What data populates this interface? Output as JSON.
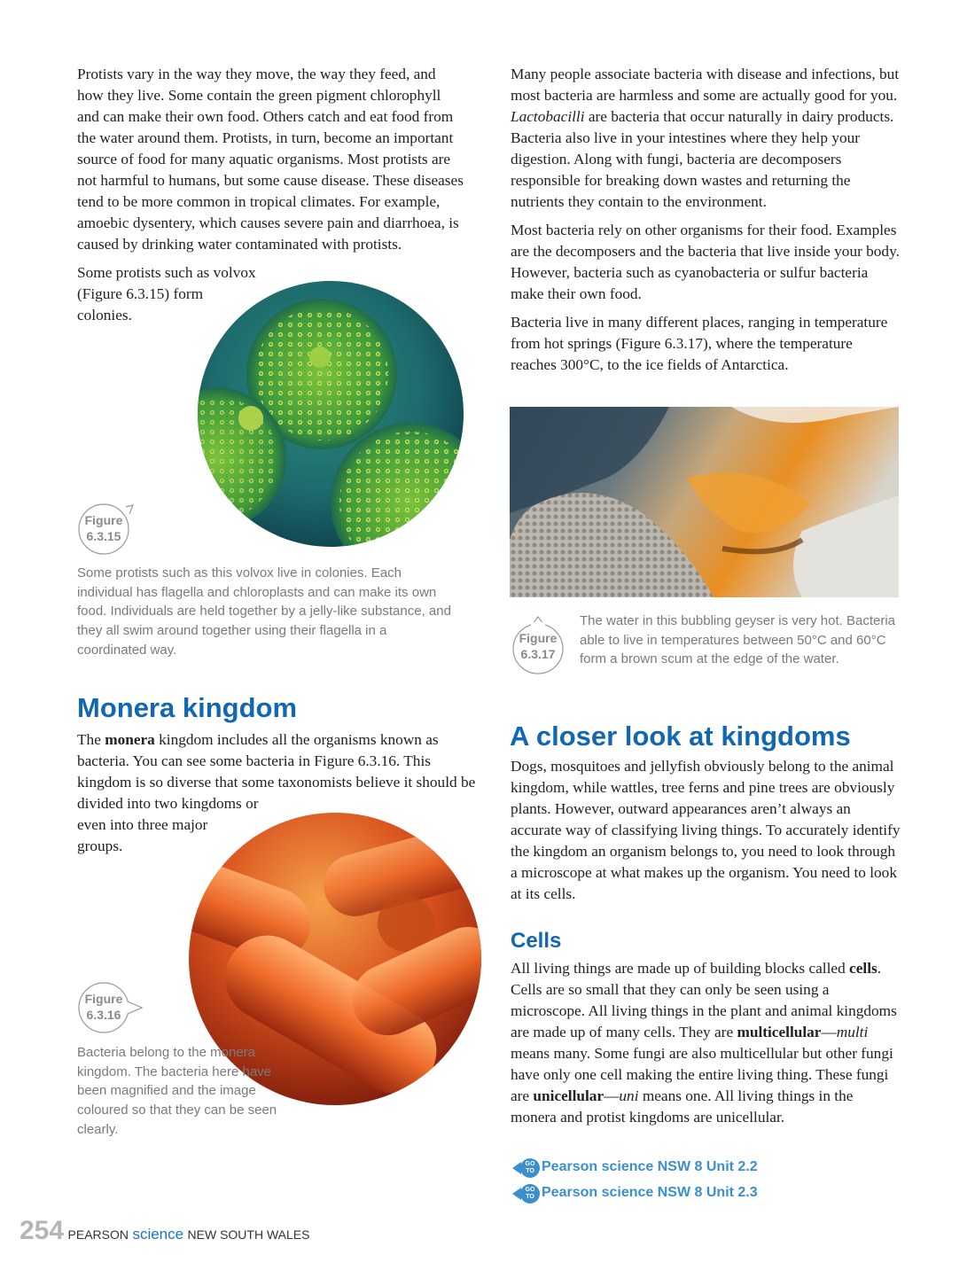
{
  "protists": {
    "paragraphs": [
      "Protists vary in the way they move, the way they feed, and how they live. Some contain the green pigment chlorophyll and can make their own food. Others catch and eat food from the water around them. Protists, in turn, become an important source of food for many aquatic organisms. Most protists are not harmful to humans, but some cause disease. These diseases tend to be more common in tropical climates. For example, amoebic dysentery, which causes severe pain and diarrhoea, is caused by drinking water contaminated with protists.",
      "Some protists such as volvox (Figure 6.3.15) form colonies."
    ],
    "figure": {
      "label": "Figure",
      "number": "6.3.15",
      "caption": "Some protists such as this volvox live in colonies. Each individual has flagella and chloroplasts and can make its own food. Individuals are held together by a jelly-like substance, and they all swim around together using their flagella in a coordinated way."
    }
  },
  "monera": {
    "heading": "Monera kingdom",
    "paragraph": [
      "The ",
      "monera",
      " kingdom includes all the organisms known as bacteria. You can see some bacteria in Figure 6.3.16. This kingdom is so diverse that some taxonomists believe it should be divided into two kingdoms or even into three major groups."
    ],
    "figure": {
      "label": "Figure",
      "number": "6.3.16",
      "caption": "Bacteria belong to the monera kingdom. The bacteria here have been magnified and the image coloured so that they can be seen clearly."
    }
  },
  "bacteria": {
    "paragraph_1": [
      "Many people associate bacteria with disease and infections, but most bacteria are harmless and some are actually good for you. ",
      "Lactobacilli",
      " are bacteria that occur naturally in dairy products. Bacteria also live in your intestines where they help your digestion. Along with fungi, bacteria are decomposers responsible for breaking down wastes and returning the nutrients they contain to the environment."
    ],
    "paragraph_2": "Most bacteria rely on other organisms for their food. Examples are the decomposers and the bacteria that live inside your body. However, bacteria such as cyanobacteria or sulfur bacteria make their own food.",
    "paragraph_3": "Bacteria live in many different places, ranging in temperature from hot springs (Figure 6.3.17), where the temperature reaches 300°C, to the ice fields of Antarctica.",
    "figure": {
      "label": "Figure",
      "number": "6.3.17",
      "caption": "The water in this bubbling geyser is very hot. Bacteria able to live in temperatures between 50°C and 60°C form a brown scum at the edge of the water."
    }
  },
  "closer_look": {
    "heading": "A closer look at kingdoms",
    "paragraph": "Dogs, mosquitoes and jellyfish obviously belong to the animal kingdom, while wattles, tree ferns and pine trees are obviously plants. However, outward appearances aren’t always an accurate way of classifying living things. To accurately identify the kingdom an organism belongs to, you need to look through a microscope at what makes up the organism. You need to look at its cells."
  },
  "cells": {
    "heading": "Cells",
    "paragraph": [
      "All living things are made up of building blocks called ",
      "cells",
      ". Cells are so small that they can only be seen using a microscope. All living things in the plant and animal kingdoms are made up of many cells. They are ",
      "multicellular",
      "—",
      "multi",
      " means many. Some fungi are also multicellular but other fungi have only one cell making the entire living thing. These fungi are ",
      "unicellular",
      "—",
      "uni",
      " means one. All living things in the monera and protist kingdoms are unicellular."
    ],
    "links": [
      {
        "icon_top": "GO",
        "icon_bottom": "TO",
        "text": "Pearson science NSW 8 Unit 2.2"
      },
      {
        "icon_top": "GO",
        "icon_bottom": "TO",
        "text": "Pearson science NSW 8 Unit 2.3"
      }
    ]
  },
  "footer": {
    "page_number": "254",
    "publisher": "PEARSON",
    "series": "science",
    "region": "NEW SOUTH WALES"
  }
}
